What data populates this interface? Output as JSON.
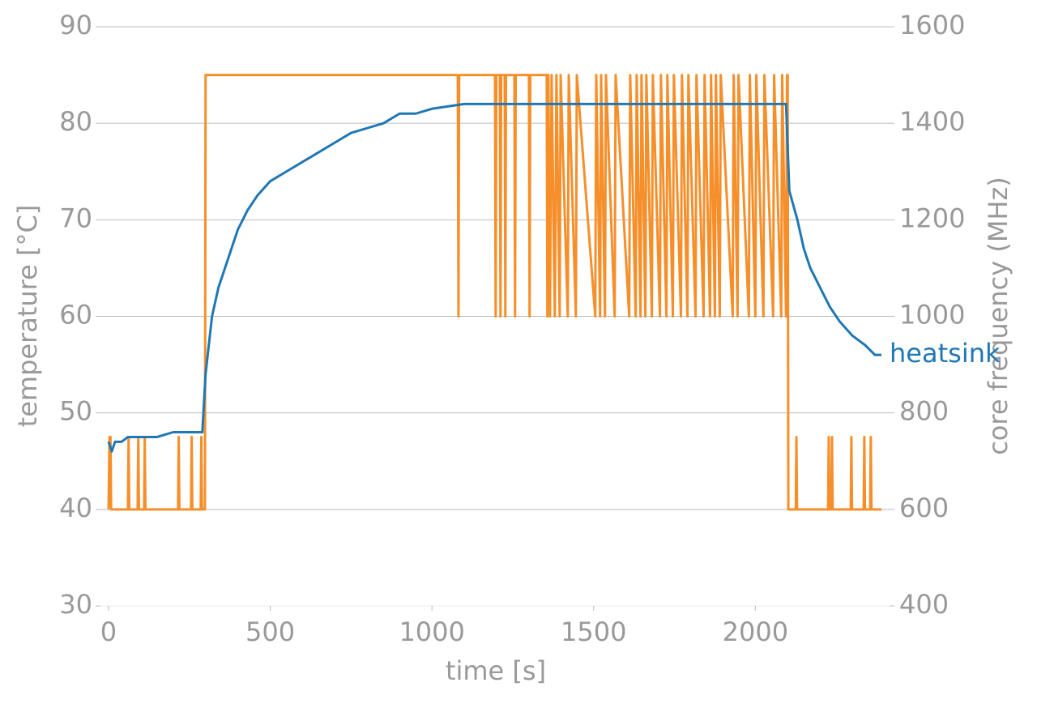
{
  "chart_data": {
    "type": "line",
    "xlabel": "time [s]",
    "ylabel": "temperature [°C]",
    "y2label": "core frequency (MHz)",
    "xlim": [
      -25,
      2415
    ],
    "xticks": [
      0,
      500,
      1000,
      1500,
      2000
    ],
    "ylim": [
      30,
      90
    ],
    "yticks": [
      30,
      40,
      50,
      60,
      70,
      80,
      90
    ],
    "y2lim": [
      400,
      1600
    ],
    "y2ticks": [
      400,
      600,
      800,
      1000,
      1200,
      1400,
      1600
    ],
    "grid": true,
    "series": [
      {
        "name": "heatsink",
        "color": "#1f77b4",
        "axis": "y",
        "x": [
          0,
          10,
          20,
          40,
          60,
          100,
          150,
          200,
          250,
          290,
          300,
          310,
          320,
          340,
          360,
          380,
          400,
          430,
          460,
          500,
          550,
          600,
          650,
          700,
          750,
          800,
          850,
          900,
          950,
          1000,
          1100,
          1500,
          2000,
          2095,
          2105,
          2130,
          2150,
          2170,
          2200,
          2230,
          2260,
          2300,
          2340,
          2370,
          2390
        ],
        "values": [
          47,
          46,
          47,
          47,
          47.5,
          47.5,
          47.5,
          48,
          48,
          48,
          54,
          57,
          60,
          63,
          65,
          67,
          69,
          71,
          72.5,
          74,
          75,
          76,
          77,
          78,
          79,
          79.5,
          80,
          81,
          81,
          81.5,
          82,
          82,
          82,
          82,
          73,
          70,
          67,
          65,
          63,
          61,
          59.5,
          58,
          57,
          56,
          56
        ]
      },
      {
        "color": "#f68f2a",
        "axis": "y2",
        "x": [
          0,
          3,
          6,
          8,
          60,
          62,
          64,
          90,
          92,
          94,
          110,
          112,
          114,
          215,
          217,
          219,
          255,
          257,
          259,
          285,
          287,
          289,
          298,
          300,
          1080,
          1082,
          1084,
          1195,
          1197,
          1199,
          1210,
          1212,
          1214,
          1225,
          1227,
          1229,
          1255,
          1257,
          1259,
          1300,
          1302,
          1304,
          1355,
          1357,
          1360,
          1365,
          1370,
          1380,
          1385,
          1395,
          1398,
          1420,
          1423,
          1445,
          1448,
          1505,
          1508,
          1520,
          1523,
          1535,
          1538,
          1565,
          1568,
          1610,
          1613,
          1630,
          1633,
          1645,
          1648,
          1660,
          1663,
          1680,
          1683,
          1705,
          1708,
          1725,
          1728,
          1745,
          1748,
          1770,
          1773,
          1790,
          1793,
          1815,
          1818,
          1840,
          1843,
          1860,
          1863,
          1875,
          1878,
          1890,
          1893,
          1930,
          1933,
          1945,
          1948,
          1980,
          1983,
          2000,
          2003,
          2025,
          2028,
          2055,
          2058,
          2080,
          2083,
          2095,
          2098,
          2100,
          2102,
          2125,
          2127,
          2129,
          2225,
          2227,
          2229,
          2235,
          2237,
          2239,
          2295,
          2297,
          2299,
          2335,
          2337,
          2339,
          2355,
          2357,
          2359,
          2390
        ],
        "values": [
          600,
          750,
          750,
          600,
          600,
          750,
          600,
          600,
          750,
          600,
          600,
          750,
          600,
          600,
          750,
          600,
          600,
          750,
          600,
          600,
          750,
          600,
          600,
          1500,
          1500,
          1000,
          1500,
          1500,
          1000,
          1500,
          1500,
          1000,
          1500,
          1500,
          1000,
          1500,
          1500,
          1000,
          1500,
          1500,
          1000,
          1500,
          1500,
          1000,
          1500,
          1000,
          1500,
          1000,
          1500,
          1000,
          1500,
          1000,
          1500,
          1000,
          1500,
          1000,
          1500,
          1000,
          1500,
          1000,
          1500,
          1000,
          1500,
          1000,
          1500,
          1000,
          1500,
          1000,
          1500,
          1000,
          1500,
          1000,
          1500,
          1000,
          1500,
          1000,
          1500,
          1000,
          1500,
          1000,
          1500,
          1000,
          1500,
          1000,
          1500,
          1000,
          1500,
          1000,
          1500,
          1000,
          1500,
          1000,
          1500,
          1000,
          1500,
          1000,
          1500,
          1000,
          1500,
          1000,
          1500,
          1000,
          1500,
          1000,
          1500,
          1000,
          1500,
          1000,
          1500,
          1500,
          600,
          600,
          750,
          600,
          600,
          750,
          600,
          600,
          750,
          600,
          600,
          750,
          600,
          600,
          750,
          600,
          600,
          750,
          600,
          600
        ]
      }
    ]
  }
}
